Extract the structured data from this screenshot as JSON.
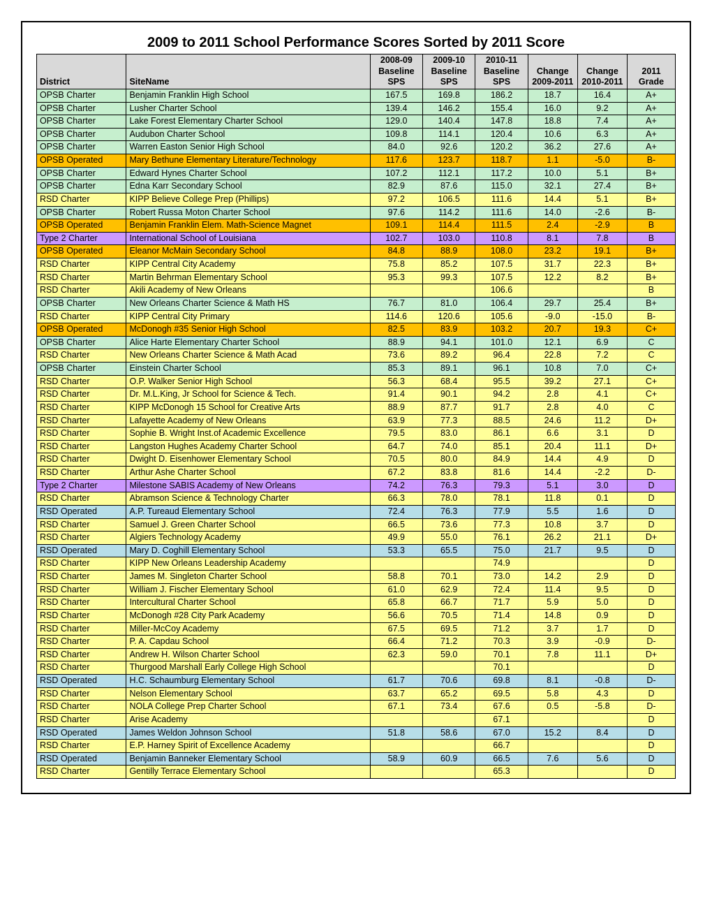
{
  "title": "2009 to 2011 School Performance Scores Sorted by 2011 Score",
  "colors": {
    "header": "#d9d9d9",
    "green": "#c6efce",
    "orange": "#ffc000",
    "yellow": "#ffff99",
    "purple": "#cc99ff",
    "lightblue": "#b7dee8"
  },
  "columns": [
    "District",
    "SiteName",
    "2008-09 Baseline SPS",
    "2009-10 Baseline SPS",
    "2010-11 Baseline SPS",
    "Change 2009-2011",
    "Change 2010-2011",
    "2011 Grade"
  ],
  "col_widths": [
    "112px",
    "320px",
    "62px",
    "62px",
    "62px",
    "58px",
    "58px",
    "56px"
  ],
  "rows": [
    {
      "district": "OPSB Charter",
      "site": "Benjamin Franklin High School",
      "v08": "167.5",
      "v09": "169.8",
      "v10": "186.2",
      "c0911": "18.7",
      "c1011": "16.4",
      "grade": "A+",
      "dk": "green"
    },
    {
      "district": "OPSB Charter",
      "site": "Lusher Charter School",
      "v08": "139.4",
      "v09": "146.2",
      "v10": "155.4",
      "c0911": "16.0",
      "c1011": "9.2",
      "grade": "A+",
      "dk": "green"
    },
    {
      "district": "OPSB Charter",
      "site": "Lake Forest Elementary Charter School",
      "v08": "129.0",
      "v09": "140.4",
      "v10": "147.8",
      "c0911": "18.8",
      "c1011": "7.4",
      "grade": "A+",
      "dk": "green"
    },
    {
      "district": "OPSB Charter",
      "site": "Audubon Charter School",
      "v08": "109.8",
      "v09": "114.1",
      "v10": "120.4",
      "c0911": "10.6",
      "c1011": "6.3",
      "grade": "A+",
      "dk": "green"
    },
    {
      "district": "OPSB Charter",
      "site": "Warren Easton Senior High School",
      "v08": "84.0",
      "v09": "92.6",
      "v10": "120.2",
      "c0911": "36.2",
      "c1011": "27.6",
      "grade": "A+",
      "dk": "green"
    },
    {
      "district": "OPSB Operated",
      "site": "Mary Bethune Elementary Literature/Technology",
      "v08": "117.6",
      "v09": "123.7",
      "v10": "118.7",
      "c0911": "1.1",
      "c1011": "-5.0",
      "grade": "B-",
      "dk": "orange"
    },
    {
      "district": "OPSB Charter",
      "site": "Edward Hynes Charter School",
      "v08": "107.2",
      "v09": "112.1",
      "v10": "117.2",
      "c0911": "10.0",
      "c1011": "5.1",
      "grade": "B+",
      "dk": "green"
    },
    {
      "district": "OPSB Charter",
      "site": "Edna Karr Secondary School",
      "v08": "82.9",
      "v09": "87.6",
      "v10": "115.0",
      "c0911": "32.1",
      "c1011": "27.4",
      "grade": "B+",
      "dk": "green"
    },
    {
      "district": "RSD Charter",
      "site": "KIPP Believe College Prep (Phillips)",
      "v08": "97.2",
      "v09": "106.5",
      "v10": "111.6",
      "c0911": "14.4",
      "c1011": "5.1",
      "grade": "B+",
      "dk": "yellow"
    },
    {
      "district": "OPSB Charter",
      "site": "Robert Russa Moton Charter School",
      "v08": "97.6",
      "v09": "114.2",
      "v10": "111.6",
      "c0911": "14.0",
      "c1011": "-2.6",
      "grade": "B-",
      "dk": "green"
    },
    {
      "district": "OPSB Operated",
      "site": "Benjamin Franklin Elem. Math-Science Magnet",
      "v08": "109.1",
      "v09": "114.4",
      "v10": "111.5",
      "c0911": "2.4",
      "c1011": "-2.9",
      "grade": "B",
      "dk": "orange"
    },
    {
      "district": "Type 2 Charter",
      "site": "International School of Louisiana",
      "v08": "102.7",
      "v09": "103.0",
      "v10": "110.8",
      "c0911": "8.1",
      "c1011": "7.8",
      "grade": "B",
      "dk": "purple"
    },
    {
      "district": "OPSB Operated",
      "site": "Eleanor McMain Secondary School",
      "v08": "84.8",
      "v09": "88.9",
      "v10": "108.0",
      "c0911": "23.2",
      "c1011": "19.1",
      "grade": "B+",
      "dk": "orange"
    },
    {
      "district": "RSD Charter",
      "site": "KIPP Central City Academy",
      "v08": "75.8",
      "v09": "85.2",
      "v10": "107.5",
      "c0911": "31.7",
      "c1011": "22.3",
      "grade": "B+",
      "dk": "yellow"
    },
    {
      "district": "RSD Charter",
      "site": "Martin Behrman Elementary School",
      "v08": "95.3",
      "v09": "99.3",
      "v10": "107.5",
      "c0911": "12.2",
      "c1011": "8.2",
      "grade": "B+",
      "dk": "yellow"
    },
    {
      "district": "RSD Charter",
      "site": "Akili Academy of New Orleans",
      "v08": "",
      "v09": "",
      "v10": "106.6",
      "c0911": "",
      "c1011": "",
      "grade": "B",
      "dk": "yellow"
    },
    {
      "district": "OPSB Charter",
      "site": "New Orleans Charter Science & Math HS",
      "v08": "76.7",
      "v09": "81.0",
      "v10": "106.4",
      "c0911": "29.7",
      "c1011": "25.4",
      "grade": "B+",
      "dk": "green"
    },
    {
      "district": "RSD Charter",
      "site": "KIPP Central City Primary",
      "v08": "114.6",
      "v09": "120.6",
      "v10": "105.6",
      "c0911": "-9.0",
      "c1011": "-15.0",
      "grade": "B-",
      "dk": "yellow"
    },
    {
      "district": "OPSB Operated",
      "site": "McDonogh #35 Senior High School",
      "v08": "82.5",
      "v09": "83.9",
      "v10": "103.2",
      "c0911": "20.7",
      "c1011": "19.3",
      "grade": "C+",
      "dk": "orange"
    },
    {
      "district": "OPSB Charter",
      "site": "Alice Harte Elementary Charter School",
      "v08": "88.9",
      "v09": "94.1",
      "v10": "101.0",
      "c0911": "12.1",
      "c1011": "6.9",
      "grade": "C",
      "dk": "green"
    },
    {
      "district": "RSD Charter",
      "site": "New Orleans Charter Science & Math Acad",
      "v08": "73.6",
      "v09": "89.2",
      "v10": "96.4",
      "c0911": "22.8",
      "c1011": "7.2",
      "grade": "C",
      "dk": "yellow"
    },
    {
      "district": "OPSB Charter",
      "site": "Einstein Charter School",
      "v08": "85.3",
      "v09": "89.1",
      "v10": "96.1",
      "c0911": "10.8",
      "c1011": "7.0",
      "grade": "C+",
      "dk": "green"
    },
    {
      "district": "RSD Charter",
      "site": "O.P. Walker Senior High School",
      "v08": "56.3",
      "v09": "68.4",
      "v10": "95.5",
      "c0911": "39.2",
      "c1011": "27.1",
      "grade": "C+",
      "dk": "yellow"
    },
    {
      "district": "RSD Charter",
      "site": "Dr. M.L.King, Jr School for Science & Tech.",
      "v08": "91.4",
      "v09": "90.1",
      "v10": "94.2",
      "c0911": "2.8",
      "c1011": "4.1",
      "grade": "C+",
      "dk": "yellow"
    },
    {
      "district": "RSD Charter",
      "site": "KIPP McDonogh 15 School for Creative Arts",
      "v08": "88.9",
      "v09": "87.7",
      "v10": "91.7",
      "c0911": "2.8",
      "c1011": "4.0",
      "grade": "C",
      "dk": "yellow"
    },
    {
      "district": "RSD Charter",
      "site": "Lafayette Academy of New Orleans",
      "v08": "63.9",
      "v09": "77.3",
      "v10": "88.5",
      "c0911": "24.6",
      "c1011": "11.2",
      "grade": "D+",
      "dk": "yellow"
    },
    {
      "district": "RSD Charter",
      "site": "Sophie B. Wright Inst.of Academic Excellence",
      "v08": "79.5",
      "v09": "83.0",
      "v10": "86.1",
      "c0911": "6.6",
      "c1011": "3.1",
      "grade": "D",
      "dk": "yellow"
    },
    {
      "district": "RSD Charter",
      "site": "Langston Hughes Academy Charter School",
      "v08": "64.7",
      "v09": "74.0",
      "v10": "85.1",
      "c0911": "20.4",
      "c1011": "11.1",
      "grade": "D+",
      "dk": "yellow"
    },
    {
      "district": "RSD Charter",
      "site": "Dwight D. Eisenhower Elementary School",
      "v08": "70.5",
      "v09": "80.0",
      "v10": "84.9",
      "c0911": "14.4",
      "c1011": "4.9",
      "grade": "D",
      "dk": "yellow"
    },
    {
      "district": "RSD Charter",
      "site": "Arthur Ashe Charter School",
      "v08": "67.2",
      "v09": "83.8",
      "v10": "81.6",
      "c0911": "14.4",
      "c1011": "-2.2",
      "grade": "D-",
      "dk": "yellow"
    },
    {
      "district": "Type 2 Charter",
      "site": "Milestone SABIS Academy of New Orleans",
      "v08": "74.2",
      "v09": "76.3",
      "v10": "79.3",
      "c0911": "5.1",
      "c1011": "3.0",
      "grade": "D",
      "dk": "purple"
    },
    {
      "district": "RSD Charter",
      "site": "Abramson Science & Technology Charter",
      "v08": "66.3",
      "v09": "78.0",
      "v10": "78.1",
      "c0911": "11.8",
      "c1011": "0.1",
      "grade": "D",
      "dk": "yellow"
    },
    {
      "district": "RSD Operated",
      "site": "A.P. Tureaud Elementary School",
      "v08": "72.4",
      "v09": "76.3",
      "v10": "77.9",
      "c0911": "5.5",
      "c1011": "1.6",
      "grade": "D",
      "dk": "lightblue"
    },
    {
      "district": "RSD Charter",
      "site": "Samuel J. Green Charter School",
      "v08": "66.5",
      "v09": "73.6",
      "v10": "77.3",
      "c0911": "10.8",
      "c1011": "3.7",
      "grade": "D",
      "dk": "yellow"
    },
    {
      "district": "RSD Charter",
      "site": "Algiers Technology Academy",
      "v08": "49.9",
      "v09": "55.0",
      "v10": "76.1",
      "c0911": "26.2",
      "c1011": "21.1",
      "grade": "D+",
      "dk": "yellow"
    },
    {
      "district": "RSD Operated",
      "site": "Mary D. Coghill Elementary School",
      "v08": "53.3",
      "v09": "65.5",
      "v10": "75.0",
      "c0911": "21.7",
      "c1011": "9.5",
      "grade": "D",
      "dk": "lightblue"
    },
    {
      "district": "RSD Charter",
      "site": "KIPP New Orleans Leadership Academy",
      "v08": "",
      "v09": "",
      "v10": "74.9",
      "c0911": "",
      "c1011": "",
      "grade": "D",
      "dk": "yellow"
    },
    {
      "district": "RSD Charter",
      "site": "James M. Singleton Charter School",
      "v08": "58.8",
      "v09": "70.1",
      "v10": "73.0",
      "c0911": "14.2",
      "c1011": "2.9",
      "grade": "D",
      "dk": "yellow"
    },
    {
      "district": "RSD Charter",
      "site": "William J. Fischer Elementary School",
      "v08": "61.0",
      "v09": "62.9",
      "v10": "72.4",
      "c0911": "11.4",
      "c1011": "9.5",
      "grade": "D",
      "dk": "yellow"
    },
    {
      "district": "RSD Charter",
      "site": "Intercultural Charter School",
      "v08": "65.8",
      "v09": "66.7",
      "v10": "71.7",
      "c0911": "5.9",
      "c1011": "5.0",
      "grade": "D",
      "dk": "yellow"
    },
    {
      "district": "RSD Charter",
      "site": "McDonogh #28 City Park Academy",
      "v08": "56.6",
      "v09": "70.5",
      "v10": "71.4",
      "c0911": "14.8",
      "c1011": "0.9",
      "grade": "D",
      "dk": "yellow"
    },
    {
      "district": "RSD Charter",
      "site": "Miller-McCoy Academy",
      "v08": "67.5",
      "v09": "69.5",
      "v10": "71.2",
      "c0911": "3.7",
      "c1011": "1.7",
      "grade": "D",
      "dk": "yellow"
    },
    {
      "district": "RSD Charter",
      "site": "P. A. Capdau School",
      "v08": "66.4",
      "v09": "71.2",
      "v10": "70.3",
      "c0911": "3.9",
      "c1011": "-0.9",
      "grade": "D-",
      "dk": "yellow"
    },
    {
      "district": "RSD Charter",
      "site": "Andrew H. Wilson Charter School",
      "v08": "62.3",
      "v09": "59.0",
      "v10": "70.1",
      "c0911": "7.8",
      "c1011": "11.1",
      "grade": "D+",
      "dk": "yellow"
    },
    {
      "district": "RSD Charter",
      "site": "Thurgood Marshall Early College High School",
      "v08": "",
      "v09": "",
      "v10": "70.1",
      "c0911": "",
      "c1011": "",
      "grade": "D",
      "dk": "yellow"
    },
    {
      "district": "RSD Operated",
      "site": "H.C. Schaumburg Elementary School",
      "v08": "61.7",
      "v09": "70.6",
      "v10": "69.8",
      "c0911": "8.1",
      "c1011": "-0.8",
      "grade": "D-",
      "dk": "lightblue"
    },
    {
      "district": "RSD Charter",
      "site": "Nelson Elementary School",
      "v08": "63.7",
      "v09": "65.2",
      "v10": "69.5",
      "c0911": "5.8",
      "c1011": "4.3",
      "grade": "D",
      "dk": "yellow"
    },
    {
      "district": "RSD Charter",
      "site": "NOLA College Prep Charter School",
      "v08": "67.1",
      "v09": "73.4",
      "v10": "67.6",
      "c0911": "0.5",
      "c1011": "-5.8",
      "grade": "D-",
      "dk": "yellow"
    },
    {
      "district": "RSD Charter",
      "site": "Arise Academy",
      "v08": "",
      "v09": "",
      "v10": "67.1",
      "c0911": "",
      "c1011": "",
      "grade": "D",
      "dk": "yellow"
    },
    {
      "district": "RSD Operated",
      "site": "James Weldon Johnson School",
      "v08": "51.8",
      "v09": "58.6",
      "v10": "67.0",
      "c0911": "15.2",
      "c1011": "8.4",
      "grade": "D",
      "dk": "lightblue"
    },
    {
      "district": "RSD Charter",
      "site": "E.P. Harney Spirit of Excellence Academy",
      "v08": "",
      "v09": "",
      "v10": "66.7",
      "c0911": "",
      "c1011": "",
      "grade": "D",
      "dk": "yellow"
    },
    {
      "district": "RSD Operated",
      "site": "Benjamin Banneker Elementary School",
      "v08": "58.9",
      "v09": "60.9",
      "v10": "66.5",
      "c0911": "7.6",
      "c1011": "5.6",
      "grade": "D",
      "dk": "lightblue"
    },
    {
      "district": "RSD Charter",
      "site": "Gentilly Terrace Elementary School",
      "v08": "",
      "v09": "",
      "v10": "65.3",
      "c0911": "",
      "c1011": "",
      "grade": "D",
      "dk": "yellow"
    }
  ]
}
